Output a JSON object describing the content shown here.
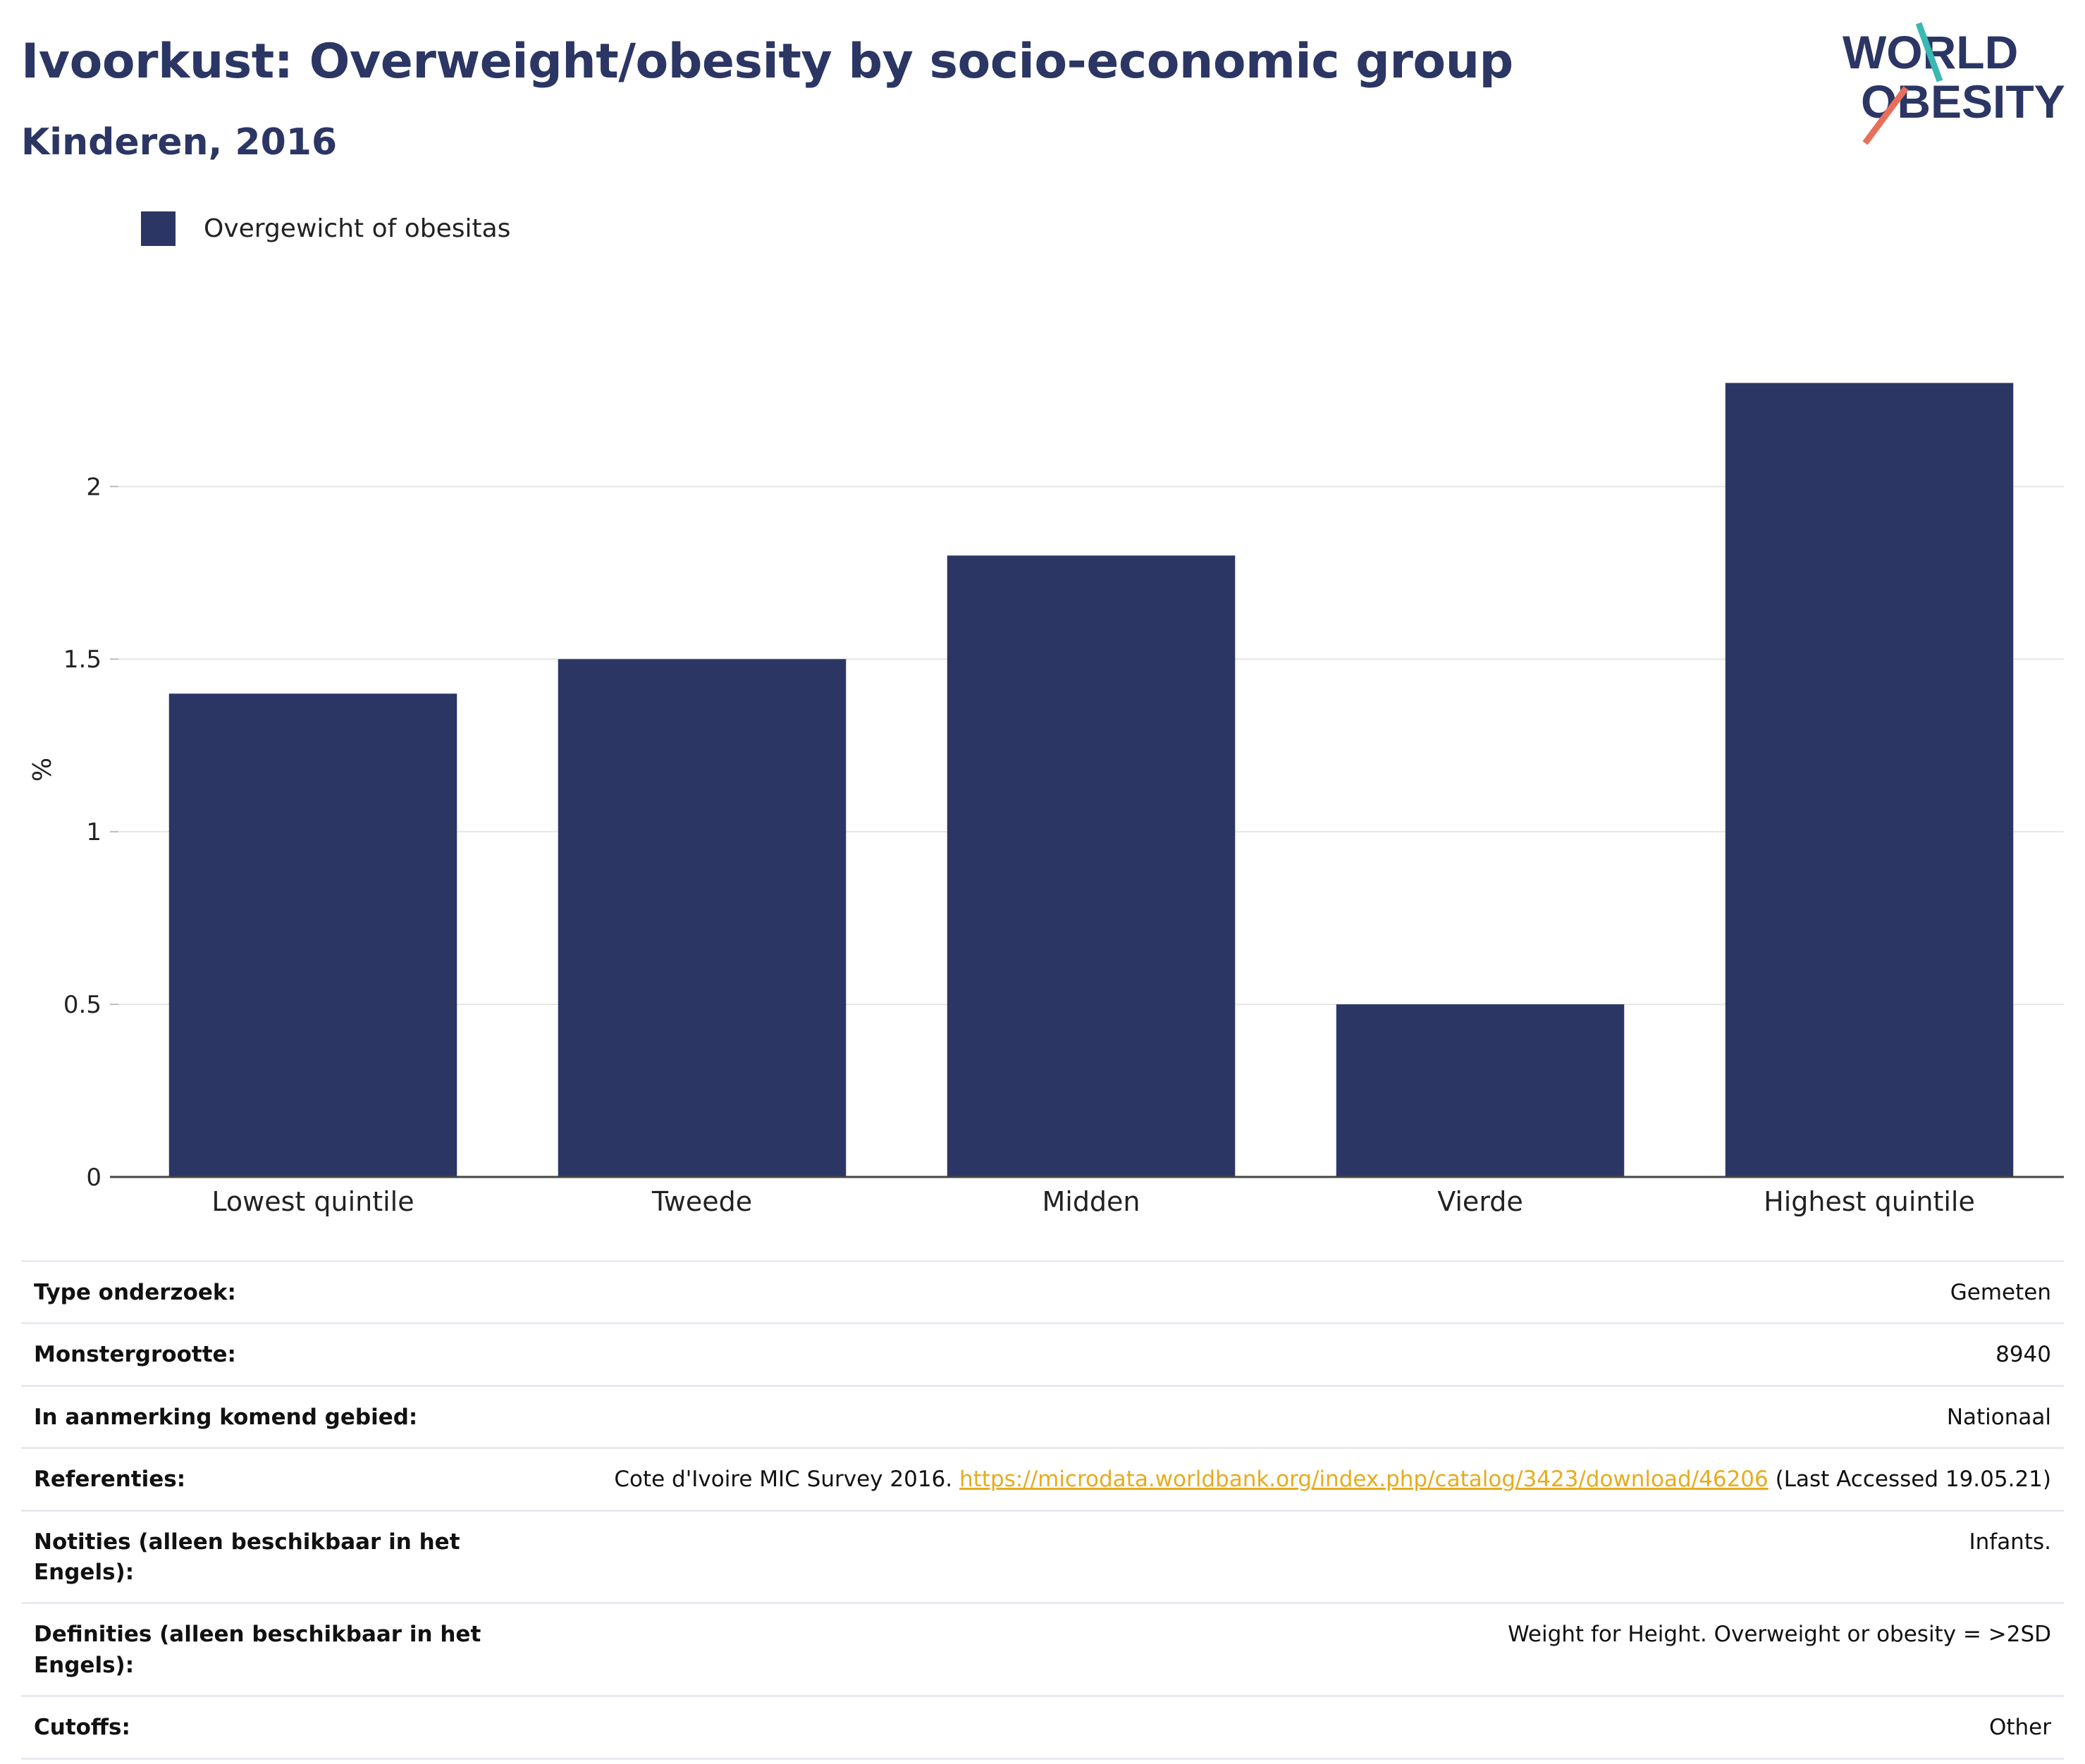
{
  "header": {
    "title": "Ivoorkust: Overweight/obesity by socio-economic group",
    "subtitle": "Kinderen, 2016"
  },
  "logo": {
    "line1": "WORLD",
    "line2": "OBESITY",
    "accent_teal": "#3ab8b4",
    "accent_coral": "#e8705a"
  },
  "legend": {
    "label": "Overgewicht of obesitas"
  },
  "colors": {
    "bar": "#2b3664",
    "title": "#2b3664",
    "grid": "#e6e6e6",
    "axis": "#444444",
    "link": "#e6ac1e"
  },
  "chart_data": {
    "type": "bar",
    "categories": [
      "Lowest quintile",
      "Tweede",
      "Midden",
      "Vierde",
      "Highest quintile"
    ],
    "series": [
      {
        "name": "Overgewicht of obesitas",
        "values": [
          1.4,
          1.5,
          1.8,
          0.5,
          2.3
        ]
      }
    ],
    "ylabel": "%",
    "xlabel": "",
    "ylim": [
      0,
      2.56
    ],
    "yticks": [
      0,
      0.5,
      1,
      1.5,
      2
    ],
    "ytick_labels": [
      "0",
      "0.5",
      "1",
      "1.5",
      "2"
    ],
    "grid": true,
    "legend_position": "top-left"
  },
  "meta": {
    "rows": [
      {
        "label": "Type onderzoek:",
        "value": "Gemeten"
      },
      {
        "label": "Monstergrootte:",
        "value": "8940"
      },
      {
        "label": "In aanmerking komend gebied:",
        "value": "Nationaal"
      },
      {
        "label": "Referenties:",
        "value": ""
      },
      {
        "label": "Notities (alleen beschikbaar in het Engels):",
        "value": "Infants."
      },
      {
        "label": "Definities (alleen beschikbaar in het Engels):",
        "value": "Weight for Height. Overweight or obesity = >2SD"
      },
      {
        "label": "Cutoffs:",
        "value": "Other"
      }
    ],
    "reference": {
      "prefix": "Cote d'Ivoire MIC Survey 2016. ",
      "link": "https://microdata.worldbank.org/index.php/catalog/3423/download/46206",
      "suffix": " (Last Accessed 19.05.21)"
    }
  }
}
